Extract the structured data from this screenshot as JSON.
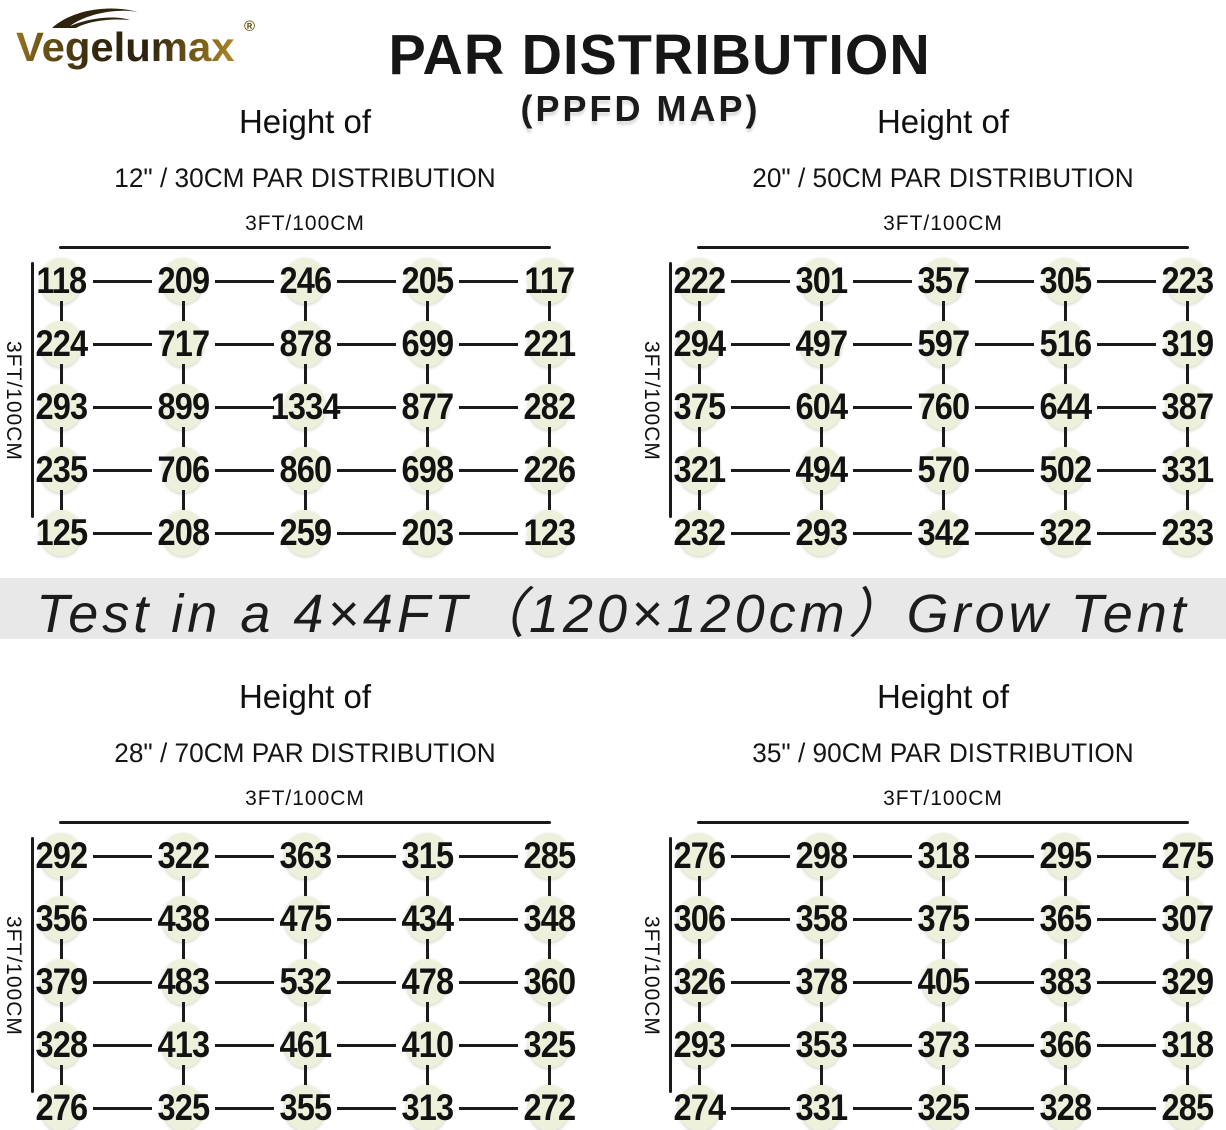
{
  "brand": {
    "logo_text": "Vegelumax",
    "registered_mark": "®"
  },
  "header": {
    "title": "PAR DISTRIBUTION",
    "subtitle": "(PPFD MAP)"
  },
  "banner": {
    "text": "Test in a 4×4FT（120×120cm）Grow Tent"
  },
  "colors": {
    "background": "#ffffff",
    "text": "#141414",
    "grid_line": "#1b1b1b",
    "node_circle": "#edf1dc",
    "banner_bg": "#e8e8e8",
    "logo_gold": "#9a7a1e",
    "logo_brown": "#33260d"
  },
  "chart_data": [
    {
      "type": "heatmap",
      "height_label": "Height of",
      "title": "12\" / 30CM PAR DISTRIBUTION",
      "xlabel": "3FT/100CM",
      "ylabel": "3FT/100CM",
      "grid": "5x5",
      "rows": [
        [
          118,
          209,
          246,
          205,
          117
        ],
        [
          224,
          717,
          878,
          699,
          221
        ],
        [
          293,
          899,
          1334,
          877,
          282
        ],
        [
          235,
          706,
          860,
          698,
          226
        ],
        [
          125,
          208,
          259,
          203,
          123
        ]
      ]
    },
    {
      "type": "heatmap",
      "height_label": "Height of",
      "title": "20\" / 50CM PAR DISTRIBUTION",
      "xlabel": "3FT/100CM",
      "ylabel": "3FT/100CM",
      "grid": "5x5",
      "rows": [
        [
          222,
          301,
          357,
          305,
          223
        ],
        [
          294,
          497,
          597,
          516,
          319
        ],
        [
          375,
          604,
          760,
          644,
          387
        ],
        [
          321,
          494,
          570,
          502,
          331
        ],
        [
          232,
          293,
          342,
          322,
          233
        ]
      ]
    },
    {
      "type": "heatmap",
      "height_label": "Height of",
      "title": "28\" / 70CM PAR DISTRIBUTION",
      "xlabel": "3FT/100CM",
      "ylabel": "3FT/100CM",
      "grid": "5x5",
      "rows": [
        [
          292,
          322,
          363,
          315,
          285
        ],
        [
          356,
          438,
          475,
          434,
          348
        ],
        [
          379,
          483,
          532,
          478,
          360
        ],
        [
          328,
          413,
          461,
          410,
          325
        ],
        [
          276,
          325,
          355,
          313,
          272
        ]
      ]
    },
    {
      "type": "heatmap",
      "height_label": "Height of",
      "title": "35\" / 90CM PAR DISTRIBUTION",
      "xlabel": "3FT/100CM",
      "ylabel": "3FT/100CM",
      "grid": "5x5",
      "rows": [
        [
          276,
          298,
          318,
          295,
          275
        ],
        [
          306,
          358,
          375,
          365,
          307
        ],
        [
          326,
          378,
          405,
          383,
          329
        ],
        [
          293,
          353,
          373,
          366,
          318
        ],
        [
          274,
          331,
          325,
          328,
          285
        ]
      ]
    }
  ]
}
